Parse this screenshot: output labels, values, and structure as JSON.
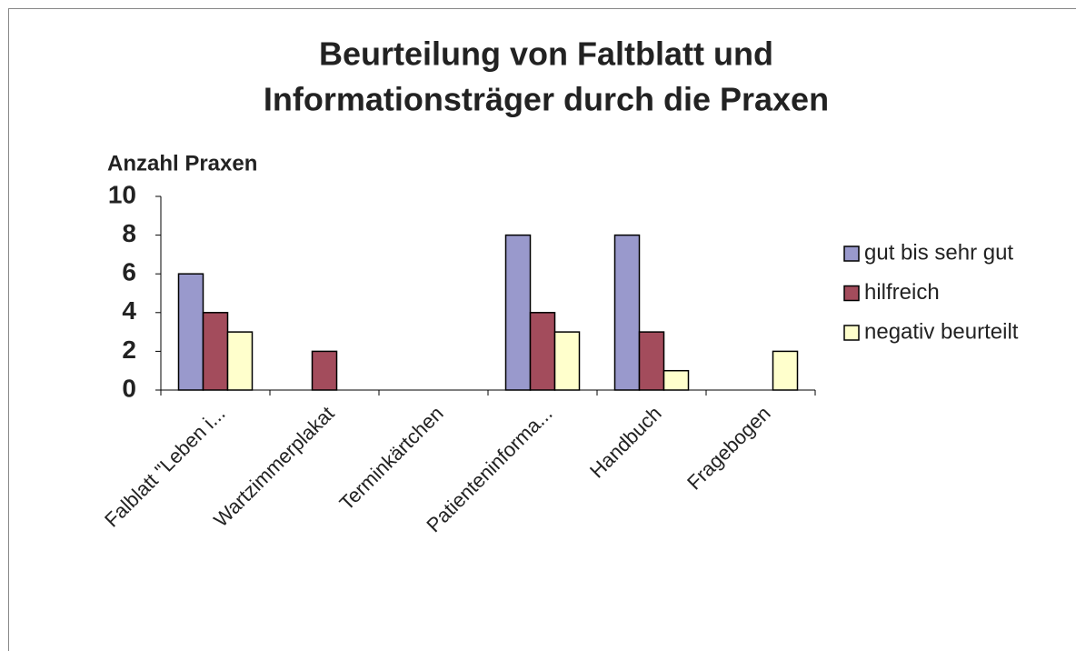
{
  "chart_data": {
    "type": "bar",
    "title": [
      "Beurteilung von Faltblatt und",
      "Informationsträger durch die Praxen"
    ],
    "y_label": "Anzahl Praxen",
    "categories": [
      "Falblatt \"Leben i...",
      "Wartzimmerplakat",
      "Terminkärtchen",
      "Patienteninforma...",
      "Handbuch",
      "Fragebogen"
    ],
    "series": [
      {
        "name": "gut bis sehr gut",
        "color": "#9999cc",
        "values": [
          6,
          0,
          0,
          8,
          8,
          0
        ]
      },
      {
        "name": "hilfreich",
        "color": "#a34c5c",
        "values": [
          4,
          2,
          0,
          4,
          3,
          0
        ]
      },
      {
        "name": "negativ beurteilt",
        "color": "#ffffcc",
        "values": [
          3,
          0,
          0,
          3,
          1,
          2
        ]
      }
    ],
    "ylim": [
      0,
      10
    ],
    "yticks": [
      0,
      2,
      4,
      6,
      8,
      10
    ],
    "legend": "right"
  }
}
